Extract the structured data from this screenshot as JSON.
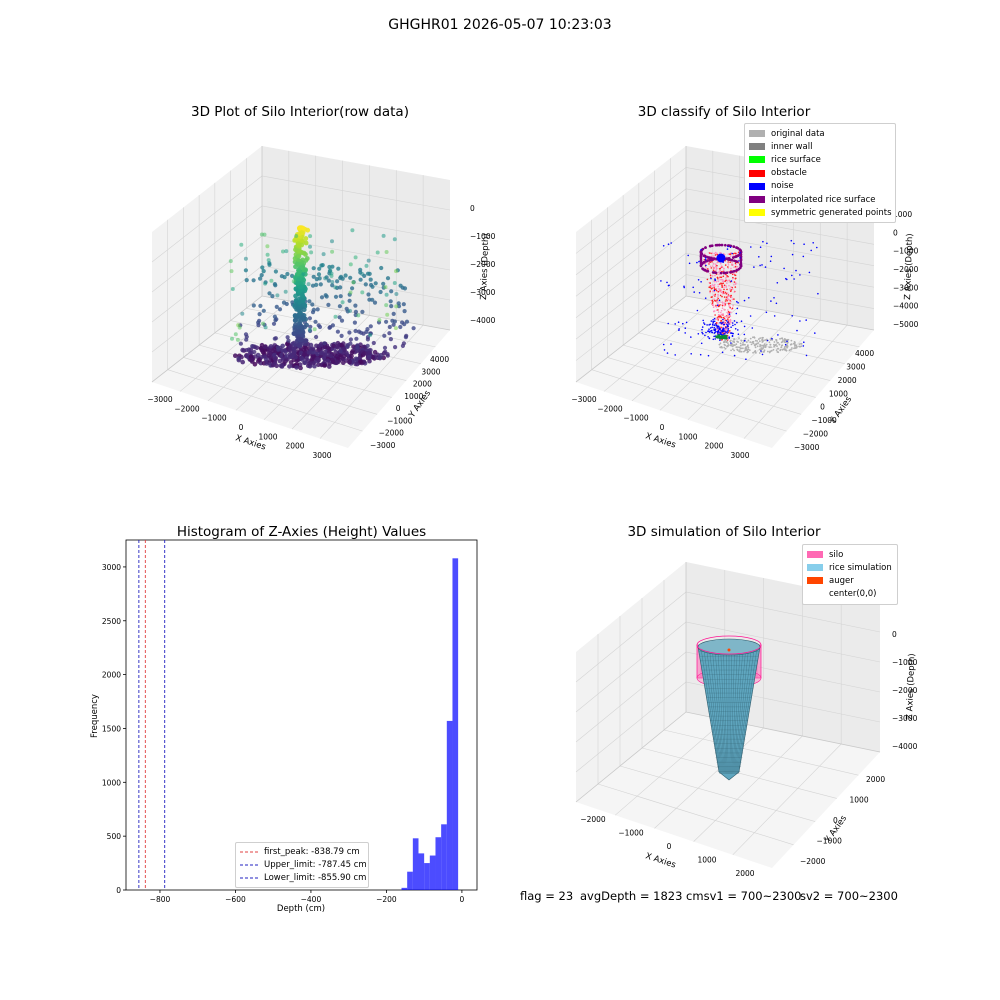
{
  "figure": {
    "suptitle": "GHGHR01 2026-05-07 10:23:03"
  },
  "panel_raw": {
    "title": "3D Plot of Silo Interior(row data)",
    "xlabel": "X Axies",
    "ylabel": "Y Axies",
    "zlabel": "Z Axies (Depth)",
    "xticks": [
      "−3000",
      "−2000",
      "−1000",
      "0",
      "1000",
      "2000",
      "3000"
    ],
    "yticks": [
      "−3000",
      "−2000",
      "−1000",
      "0",
      "1000",
      "2000",
      "3000",
      "4000"
    ],
    "zticks": [
      "0",
      "−1000",
      "−2000",
      "−3000",
      "−4000"
    ],
    "colormap": "viridis"
  },
  "panel_classify": {
    "title": "3D classify of Silo Interior",
    "xlabel": "X Axies",
    "ylabel": "Y Axies",
    "zlabel": "Z Axies (Depth)",
    "xticks": [
      "−3000",
      "−2000",
      "−1000",
      "0",
      "1000",
      "2000",
      "3000"
    ],
    "yticks": [
      "−3000",
      "−2000",
      "−1000",
      "0",
      "1000",
      "2000",
      "3000",
      "4000"
    ],
    "zticks": [
      "1000",
      "0",
      "−1000",
      "−2000",
      "−3000",
      "−4000",
      "−5000"
    ],
    "legend": [
      {
        "label": "original data",
        "color": "#b0b0b0"
      },
      {
        "label": "inner wall",
        "color": "#808080"
      },
      {
        "label": "rice surface",
        "color": "#00ff00"
      },
      {
        "label": "obstacle",
        "color": "#ff0000"
      },
      {
        "label": "noise",
        "color": "#0000ff"
      },
      {
        "label": "interpolated rice surface",
        "color": "#800080"
      },
      {
        "label": "symmetric generated points",
        "color": "#ffff00"
      }
    ]
  },
  "panel_hist": {
    "title": "Histogram of Z-Axies (Height) Values",
    "xlabel": "Depth (cm)",
    "ylabel": "Frequency",
    "xticks": [
      "−800",
      "−600",
      "−400",
      "−200",
      "0"
    ],
    "yticks": [
      "0",
      "500",
      "1000",
      "1500",
      "2000",
      "2500",
      "3000"
    ],
    "legend": [
      {
        "label": "first_peak: -838.79 cm",
        "color": "#e04040"
      },
      {
        "label": "Upper_limit: -787.45 cm",
        "color": "#2020c0"
      },
      {
        "label": "Lower_limit: -855.90 cm",
        "color": "#2020c0"
      }
    ]
  },
  "panel_sim": {
    "title": "3D simulation of Silo Interior",
    "xlabel": "X Axies",
    "ylabel": "Y Axies",
    "zlabel": "Z Axies (Depth)",
    "xticks": [
      "−2000",
      "−1000",
      "0",
      "1000",
      "2000"
    ],
    "yticks": [
      "−2000",
      "−1000",
      "0",
      "1000",
      "2000"
    ],
    "zticks": [
      "0",
      "−1000",
      "−2000",
      "−3000",
      "−4000"
    ],
    "legend": [
      {
        "label": "silo",
        "color": "#ff69b4"
      },
      {
        "label": "rice simulation",
        "color": "#87ceeb"
      },
      {
        "label": "auger",
        "color": "#ff4500"
      },
      {
        "label": "center(0,0)",
        "color": "#ffffff"
      }
    ]
  },
  "footer": {
    "flag": "flag = 23",
    "avg": "avgDepth = 1823 cmsv1 = 700~2300",
    "sv2": "sv2 = 700~2300"
  },
  "chart_data": [
    {
      "type": "scatter",
      "title": "3D Plot of Silo Interior(row data)",
      "xlabel": "X Axies",
      "ylabel": "Y Axies",
      "zlabel": "Z Axies (Depth)",
      "xlim": [
        -3500,
        3500
      ],
      "ylim": [
        -3500,
        4500
      ],
      "zlim": [
        -4800,
        0
      ],
      "projection": "3d"
    },
    {
      "type": "scatter",
      "title": "3D classify of Silo Interior",
      "xlabel": "X Axies",
      "ylabel": "Y Axies",
      "zlabel": "Z Axies (Depth)",
      "xlim": [
        -3500,
        3500
      ],
      "ylim": [
        -3500,
        4500
      ],
      "zlim": [
        -5500,
        1000
      ],
      "projection": "3d",
      "series": [
        {
          "name": "original data"
        },
        {
          "name": "inner wall"
        },
        {
          "name": "rice surface"
        },
        {
          "name": "obstacle"
        },
        {
          "name": "noise"
        },
        {
          "name": "interpolated rice surface"
        },
        {
          "name": "symmetric generated points"
        }
      ]
    },
    {
      "type": "bar",
      "title": "Histogram of Z-Axies (Height) Values",
      "xlabel": "Depth (cm)",
      "ylabel": "Frequency",
      "xlim": [
        -890,
        40
      ],
      "ylim": [
        0,
        3250
      ],
      "bins": [
        {
          "x0": -160,
          "x1": -145,
          "count": 20
        },
        {
          "x0": -145,
          "x1": -130,
          "count": 170
        },
        {
          "x0": -130,
          "x1": -115,
          "count": 480
        },
        {
          "x0": -115,
          "x1": -100,
          "count": 340
        },
        {
          "x0": -100,
          "x1": -85,
          "count": 250
        },
        {
          "x0": -85,
          "x1": -70,
          "count": 320
        },
        {
          "x0": -70,
          "x1": -55,
          "count": 490
        },
        {
          "x0": -55,
          "x1": -40,
          "count": 610
        },
        {
          "x0": -40,
          "x1": -25,
          "count": 1570
        },
        {
          "x0": -25,
          "x1": -10,
          "count": 3080
        }
      ],
      "vlines": [
        {
          "name": "first_peak: -838.79 cm",
          "x": -838.79
        },
        {
          "name": "Upper_limit: -787.45 cm",
          "x": -787.45
        },
        {
          "name": "Lower_limit: -855.90 cm",
          "x": -855.9
        }
      ],
      "legend_loc": "lower center"
    },
    {
      "type": "area",
      "title": "3D simulation of Silo Interior",
      "xlabel": "X Axies",
      "ylabel": "Y Axies",
      "zlabel": "Z Axies (Depth)",
      "xlim": [
        -2500,
        2500
      ],
      "ylim": [
        -2500,
        2500
      ],
      "zlim": [
        -4800,
        0
      ],
      "projection": "3d",
      "series": [
        {
          "name": "silo"
        },
        {
          "name": "rice simulation"
        },
        {
          "name": "auger"
        },
        {
          "name": "center(0,0)"
        }
      ]
    }
  ]
}
